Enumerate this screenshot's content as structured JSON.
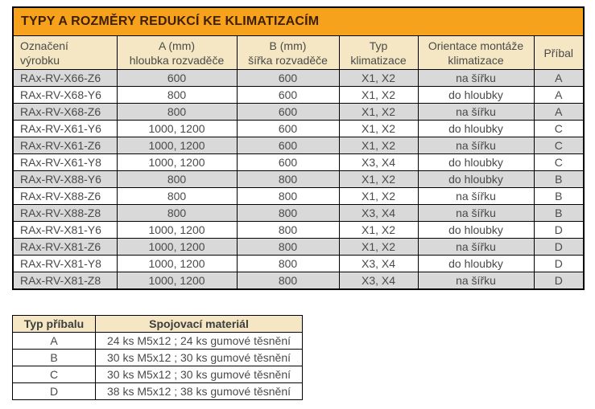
{
  "colors": {
    "title_bg": "#F6A21D",
    "title_text": "#3F2000",
    "header_bg": "#F5E7C3",
    "stripe_bg": "#D9D9D9",
    "row_bg": "#FFFFFF",
    "border": "#000000",
    "text": "#4A4A4A"
  },
  "main_table": {
    "title": "TYPY A ROZMĚRY REDUKCÍ KE KLIMATIZACÍM",
    "headers": [
      "Označení\nvýrobku",
      "A (mm)\nhloubka rozvaděče",
      "B (mm)\nšířka rozvaděče",
      "Typ\nklimatizace",
      "Orientace montáže\nklimatizace",
      "Příbal"
    ],
    "rows": [
      [
        "RAx-RV-X66-Z6",
        "600",
        "600",
        "X1, X2",
        "na šířku",
        "A"
      ],
      [
        "RAx-RV-X68-Y6",
        "800",
        "600",
        "X1, X2",
        "do hloubky",
        "A"
      ],
      [
        "RAx-RV-X68-Z6",
        "800",
        "600",
        "X1, X2",
        "na šířku",
        "A"
      ],
      [
        "RAx-RV-X61-Y6",
        "1000, 1200",
        "600",
        "X1, X2",
        "do hloubky",
        "C"
      ],
      [
        "RAx-RV-X61-Z6",
        "1000, 1200",
        "600",
        "X1, X2",
        "na šířku",
        "C"
      ],
      [
        "RAx-RV-X61-Y8",
        "1000, 1200",
        "600",
        "X3, X4",
        "do hloubky",
        "C"
      ],
      [
        "RAx-RV-X88-Y6",
        "800",
        "800",
        "X1, X2",
        "do hloubky",
        "B"
      ],
      [
        "RAx-RV-X88-Z6",
        "800",
        "800",
        "X1, X2",
        "na šířku",
        "B"
      ],
      [
        "RAx-RV-X88-Z8",
        "800",
        "800",
        "X3, X4",
        "na šířku",
        "B"
      ],
      [
        "RAx-RV-X81-Y6",
        "1000, 1200",
        "800",
        "X1, X2",
        "do hloubky",
        "D"
      ],
      [
        "RAx-RV-X81-Z6",
        "1000, 1200",
        "800",
        "X1, X2",
        "na šířku",
        "D"
      ],
      [
        "RAx-RV-X81-Y8",
        "1000, 1200",
        "800",
        "X3, X4",
        "do hloubky",
        "D"
      ],
      [
        "RAx-RV-X81-Z8",
        "1000, 1200",
        "800",
        "X3, X4",
        "na šířku",
        "D"
      ]
    ]
  },
  "accessory_table": {
    "headers": [
      "Typ příbalu",
      "Spojovací materiál"
    ],
    "rows": [
      [
        "A",
        "24 ks M5x12 ; 24 ks gumové těsnění"
      ],
      [
        "B",
        "30 ks M5x12 ; 30 ks gumové těsnění"
      ],
      [
        "C",
        "30 ks M5x12 ; 30 ks gumové těsnění"
      ],
      [
        "D",
        "38 ks M5x12 ; 38 ks gumové těsnění"
      ]
    ]
  }
}
